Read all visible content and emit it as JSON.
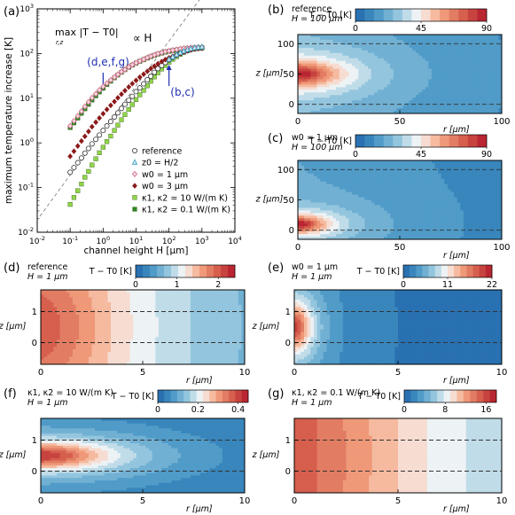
{
  "chart_data": [
    {
      "panel": "(a)",
      "type": "scatter",
      "xlabel": "channel height H [µm]",
      "ylabel": "maximum temperature increase [K]",
      "xscale": "log",
      "yscale": "log",
      "xlim": [
        0.01,
        10000
      ],
      "ylim": [
        0.01,
        1000
      ],
      "xticks": [
        "10-2",
        "10-1",
        "100",
        "101",
        "102",
        "103",
        "104"
      ],
      "yticks": [
        "10-2",
        "10-1",
        "100",
        "101",
        "102",
        "103"
      ],
      "ymax_label": "max |T − T0|",
      "ymax_sub": "r,z",
      "prop_label": "∝ H",
      "annotations": [
        {
          "text": "(d,e,f,g)",
          "x": 1,
          "y": 30
        },
        {
          "text": "(b,c)",
          "x": 100,
          "y": 20
        }
      ],
      "legend": "lower-right",
      "series": [
        {
          "name": "reference",
          "marker": "circle-open",
          "color": "#333333",
          "x": [
            0.1,
            0.13,
            0.17,
            0.22,
            0.28,
            0.36,
            0.46,
            0.6,
            0.77,
            1,
            1.3,
            1.7,
            2.2,
            2.8,
            3.6,
            4.6,
            6,
            7.7,
            10,
            13,
            17,
            22,
            28,
            36,
            46,
            60,
            77,
            100,
            130,
            170,
            220,
            280,
            360,
            460,
            600,
            770,
            1000
          ],
          "y": [
            0.22,
            0.28,
            0.36,
            0.46,
            0.59,
            0.75,
            0.95,
            1.2,
            1.5,
            1.9,
            2.4,
            3.0,
            3.8,
            4.7,
            5.9,
            7.3,
            9.0,
            11,
            14,
            17,
            21,
            26,
            31,
            38,
            46,
            54,
            63,
            72,
            82,
            92,
            101,
            109,
            116,
            122,
            127,
            130,
            132
          ]
        },
        {
          "name": "z0 = H/2",
          "marker": "triangle-open",
          "color": "#3a9bc0",
          "x": [
            100,
            130,
            170,
            220,
            280,
            360,
            460,
            600,
            770,
            1000
          ],
          "y": [
            74,
            84,
            94,
            104,
            113,
            121,
            128,
            134,
            138,
            141
          ]
        },
        {
          "name": "w0 = 1 µm",
          "marker": "diamond-open",
          "color": "#d06a8a",
          "x": [
            0.1,
            0.13,
            0.17,
            0.22,
            0.28,
            0.36,
            0.46,
            0.6,
            0.77,
            1,
            1.3,
            1.7,
            2.2,
            2.8,
            3.6,
            4.6,
            6,
            7.7,
            10,
            13,
            17,
            22,
            28,
            36,
            46,
            60,
            77,
            100,
            130,
            170,
            220,
            280,
            360,
            460,
            600,
            770,
            1000
          ],
          "y": [
            2.4,
            3.1,
            4.0,
            5.1,
            6.5,
            8.2,
            10.2,
            12.5,
            15.2,
            18.2,
            21.6,
            25.4,
            29.6,
            34,
            39,
            44,
            50,
            56,
            62,
            68,
            74,
            81,
            87,
            93,
            99,
            105,
            110,
            115,
            119,
            123,
            127,
            130,
            133,
            135,
            137,
            139,
            140
          ]
        },
        {
          "name": "w0 = 3 µm",
          "marker": "diamond-filled",
          "color": "#8b1a1a",
          "x": [
            0.1,
            0.13,
            0.17,
            0.22,
            0.28,
            0.36,
            0.46,
            0.6,
            0.77,
            1,
            1.3,
            1.7,
            2.2,
            2.8,
            3.6,
            4.6,
            6,
            7.7,
            10,
            13,
            17,
            22,
            28,
            36,
            46,
            60,
            77,
            100,
            130,
            170,
            220,
            280,
            360,
            460,
            600,
            770,
            1000
          ],
          "y": [
            0.5,
            0.65,
            0.85,
            1.1,
            1.4,
            1.8,
            2.3,
            2.9,
            3.6,
            4.5,
            5.6,
            6.9,
            8.4,
            10.2,
            12.3,
            14.8,
            17.8,
            21.2,
            25,
            29.5,
            34.5,
            40,
            46,
            52,
            59,
            66,
            73,
            80,
            87,
            94,
            101,
            108,
            115,
            121,
            126,
            130,
            133
          ]
        },
        {
          "name": "κ1, κ2 = 10 W/(m K)",
          "marker": "square-filled",
          "color": "#8fd64a",
          "x": [
            0.1,
            0.13,
            0.17,
            0.22,
            0.28,
            0.36,
            0.46,
            0.6,
            0.77,
            1,
            1.3,
            1.7,
            2.2,
            2.8,
            3.6,
            4.6,
            6,
            7.7,
            10,
            13,
            17,
            22,
            28,
            36,
            46,
            60,
            77,
            100,
            130,
            170,
            220,
            280,
            360,
            460,
            600,
            770,
            1000
          ],
          "y": [
            0.042,
            0.06,
            0.085,
            0.12,
            0.17,
            0.23,
            0.32,
            0.44,
            0.6,
            0.8,
            1.07,
            1.42,
            1.9,
            2.5,
            3.3,
            4.3,
            5.6,
            7.2,
            9.3,
            11.9,
            15,
            19,
            24,
            30,
            37,
            45,
            54,
            64,
            74,
            85,
            96,
            106,
            115,
            123,
            129,
            133,
            136
          ]
        },
        {
          "name": "κ1, κ2 = 0.1 W/(m K)",
          "marker": "square-filled",
          "color": "#2a8a22",
          "x": [
            0.1,
            0.13,
            0.17,
            0.22,
            0.28,
            0.36,
            0.46,
            0.6,
            0.77,
            1,
            1.3,
            1.7,
            2.2,
            2.8,
            3.6,
            4.6,
            6,
            7.7,
            10,
            13,
            17,
            22,
            28,
            36,
            46,
            60,
            77,
            100,
            130,
            170,
            220,
            280,
            360,
            460,
            600,
            770,
            1000
          ],
          "y": [
            2.2,
            2.8,
            3.6,
            4.6,
            5.8,
            7.3,
            9.1,
            11.3,
            13.8,
            16.8,
            20.2,
            24,
            28.5,
            33,
            38,
            43.5,
            49,
            55,
            61,
            67,
            73,
            79,
            85,
            91,
            97,
            102,
            107,
            112,
            116,
            120,
            123,
            126,
            129,
            131,
            133,
            134,
            135
          ]
        }
      ]
    },
    {
      "panel": "(b)",
      "type": "heatmap",
      "line1": "reference",
      "line2": "H = 100 µm",
      "cbar_label": "T − T0 [K]",
      "cbar_ticks": [
        "0",
        "45",
        "90"
      ],
      "cmax": 90,
      "xlabel": "r [µm]",
      "ylabel": "z [µm]",
      "xticks": [
        "0",
        "50",
        "100"
      ],
      "yticks": [
        "0",
        "50",
        "100"
      ],
      "xlim": [
        0,
        100
      ],
      "ylim": [
        -15,
        115
      ],
      "dashed_z": [
        0,
        100
      ],
      "source": {
        "r0": 0,
        "z0": 50,
        "wr": 20,
        "wz": 20
      },
      "peak": 90,
      "floor": 20
    },
    {
      "panel": "(c)",
      "type": "heatmap",
      "line1": "w0 = 1 µm",
      "line2": "H = 100 µm",
      "cbar_label": "T − T0 [K]",
      "cbar_ticks": [
        "0",
        "45",
        "90"
      ],
      "cmax": 90,
      "xlabel": "r [µm]",
      "ylabel": "z [µm]",
      "xticks": [
        "0",
        "50",
        "100"
      ],
      "yticks": [
        "0",
        "50",
        "100"
      ],
      "xlim": [
        0,
        100
      ],
      "ylim": [
        -15,
        115
      ],
      "dashed_z": [
        0,
        100
      ],
      "source": {
        "r0": 0,
        "z0": 10,
        "wr": 14,
        "wz": 14
      },
      "peak": 90,
      "floor": 18
    },
    {
      "panel": "(d)",
      "type": "heatmap",
      "line1": "reference",
      "line2": "H = 1 µm",
      "cbar_label": "T − T0 [K]",
      "cbar_ticks": [
        "0",
        "1",
        "2"
      ],
      "cmax": 2.4,
      "xlabel": "r [µm]",
      "ylabel": "z [µm]",
      "xticks": [
        "0",
        "5",
        "10"
      ],
      "yticks": [
        "0",
        "1"
      ],
      "xlim": [
        0,
        10
      ],
      "ylim": [
        -0.7,
        1.7
      ],
      "dashed_z": [
        0,
        1
      ],
      "source": {
        "r0": 0,
        "z0": 0.5,
        "wr": 4,
        "wz": 3
      },
      "peak": 2.0,
      "floor": 1.0
    },
    {
      "panel": "(e)",
      "type": "heatmap",
      "line1": "w0 = 1 µm",
      "line2": "H = 1 µm",
      "cbar_label": "T − T0 [K]",
      "cbar_ticks": [
        "0",
        "11",
        "22"
      ],
      "cmax": 22,
      "xlabel": "r [µm]",
      "ylabel": "z [µm]",
      "xticks": [
        "0",
        "5",
        "10"
      ],
      "yticks": [
        "0",
        "1"
      ],
      "xlim": [
        0,
        10
      ],
      "ylim": [
        -0.7,
        1.7
      ],
      "dashed_z": [
        0,
        1
      ],
      "source": {
        "r0": 0,
        "z0": 0.5,
        "wr": 0.8,
        "wz": 0.8
      },
      "peak": 20,
      "floor": 1.5
    },
    {
      "panel": "(f)",
      "type": "heatmap",
      "line1": "κ1, κ2 = 10 W/(m K)",
      "line2": "H = 1 µm",
      "cbar_label": "T − T0 [K]",
      "cbar_ticks": [
        "0",
        "0.2",
        "0.4"
      ],
      "cmax": 0.45,
      "xlabel": "r [µm]",
      "ylabel": "z [µm]",
      "xticks": [
        "0",
        "5",
        "10"
      ],
      "yticks": [
        "0",
        "1"
      ],
      "xlim": [
        0,
        10
      ],
      "ylim": [
        -0.7,
        1.7
      ],
      "dashed_z": [
        0,
        1
      ],
      "source": {
        "r0": 0,
        "z0": 0.5,
        "wr": 3.5,
        "wz": 0.45
      },
      "peak": 0.42,
      "floor": 0.02
    },
    {
      "panel": "(g)",
      "type": "heatmap",
      "line1": "κ1, κ2 = 0.1 W/(m K)",
      "line2": "H = 1 µm",
      "cbar_label": "T − T0 [K]",
      "cbar_ticks": [
        "0",
        "8",
        "16"
      ],
      "cmax": 18,
      "xlabel": "r [µm]",
      "ylabel": "z [µm]",
      "xticks": [
        "0",
        "5",
        "10"
      ],
      "yticks": [
        "0",
        "1"
      ],
      "xlim": [
        0,
        10
      ],
      "ylim": [
        -0.7,
        1.7
      ],
      "dashed_z": [
        0,
        1
      ],
      "source": {
        "r0": 0,
        "z0": 0.5,
        "wr": 6,
        "wz": 8
      },
      "peak": 15,
      "floor": 10
    }
  ]
}
